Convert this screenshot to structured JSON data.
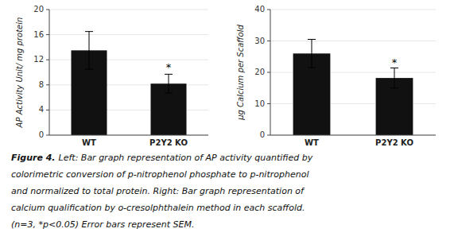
{
  "chart_data": [
    {
      "type": "bar",
      "categories": [
        "WT",
        "P2Y2 KO"
      ],
      "values": [
        13.5,
        8.2
      ],
      "errors": [
        3.0,
        1.5
      ],
      "y_label": "AP Activity Unit/ mg protein",
      "ylim": [
        0,
        20
      ],
      "yticks": [
        0,
        4,
        8,
        12,
        16,
        20
      ],
      "color": "#111111",
      "annotations": [
        {
          "text": "*",
          "x": "P2Y2 KO",
          "y": 10.2
        }
      ]
    },
    {
      "type": "bar",
      "categories": [
        "WT",
        "P2Y2 KO"
      ],
      "values": [
        26.0,
        18.2
      ],
      "errors": [
        4.5,
        3.2
      ],
      "y_label": "μg Calcium per Scaffold",
      "ylim": [
        0,
        40
      ],
      "yticks": [
        0,
        10,
        20,
        30,
        40
      ],
      "color": "#111111",
      "annotations": [
        {
          "text": "*",
          "x": "P2Y2 KO",
          "y": 22.0
        }
      ]
    }
  ],
  "caption_label": "Figure 4.",
  "caption": [
    "Left: Bar graph representation of AP activity quantified by",
    "colorimetric conversion of p-nitrophenol phosphate to p-nitrophenol",
    "and normalized to total protein. Right: Bar graph representation of",
    "calcium qualification by o-cresolphthalein method in each scaffold.",
    "(n=3, *p<0.05) Error bars represent SEM."
  ]
}
